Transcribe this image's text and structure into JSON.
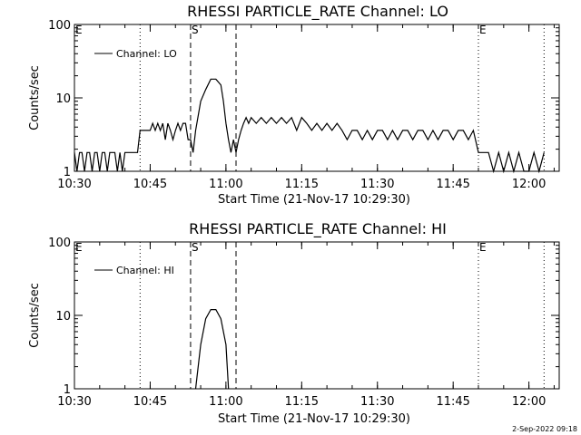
{
  "footer": {
    "timestamp": "2-Sep-2022 09:18"
  },
  "chart_data": [
    {
      "type": "line",
      "title": "RHESSI PARTICLE_RATE Channel: LO",
      "xlabel": "Start Time (21-Nov-17 10:29:30)",
      "ylabel": "Counts/sec",
      "y_scale": "log",
      "ylim": [
        1,
        100
      ],
      "xlim": [
        "10:30",
        "12:06"
      ],
      "x_ticks": [
        "10:30",
        "10:45",
        "11:00",
        "11:15",
        "11:30",
        "11:45",
        "12:00"
      ],
      "y_ticks": [
        "1",
        "10",
        "100"
      ],
      "legend": {
        "position": "top-left",
        "entries": [
          "Channel: LO"
        ]
      },
      "markers": [
        {
          "label": "E",
          "time": "10:30",
          "style": "none"
        },
        {
          "label": "",
          "time": "10:43",
          "style": "dotted"
        },
        {
          "label": "S",
          "time": "10:53",
          "style": "dashed"
        },
        {
          "label": "",
          "time": "11:02",
          "style": "dashed"
        },
        {
          "label": "E",
          "time": "11:50",
          "style": "dotted"
        },
        {
          "label": "",
          "time": "12:03",
          "style": "dotted"
        }
      ],
      "series": [
        {
          "name": "Channel: LO",
          "x": [
            "10:30",
            "10:30.5",
            "10:31",
            "10:31.5",
            "10:32",
            "10:32.5",
            "10:33",
            "10:33.5",
            "10:34",
            "10:34.5",
            "10:35",
            "10:35.5",
            "10:36",
            "10:36.5",
            "10:37",
            "10:37.5",
            "10:38",
            "10:38.5",
            "10:39",
            "10:39.5",
            "10:40",
            "10:40.5",
            "10:41",
            "10:41.5",
            "10:42",
            "10:42.5",
            "10:43",
            "10:43.5",
            "10:44",
            "10:44.5",
            "10:45",
            "10:45.5",
            "10:46",
            "10:46.5",
            "10:47",
            "10:47.5",
            "10:48",
            "10:48.5",
            "10:49",
            "10:49.5",
            "10:50",
            "10:50.5",
            "10:51",
            "10:51.5",
            "10:52",
            "10:52.5",
            "10:53",
            "10:53.5",
            "10:54",
            "10:55",
            "10:56",
            "10:57",
            "10:58",
            "10:59",
            "10:59.5",
            "11:00",
            "11:00.5",
            "11:01",
            "11:01.5",
            "11:02",
            "11:02.5",
            "11:03",
            "11:03.5",
            "11:04",
            "11:04.5",
            "11:05",
            "11:06",
            "11:07",
            "11:08",
            "11:09",
            "11:10",
            "11:11",
            "11:12",
            "11:13",
            "11:14",
            "11:15",
            "11:16",
            "11:17",
            "11:18",
            "11:19",
            "11:20",
            "11:21",
            "11:22",
            "11:23",
            "11:24",
            "11:25",
            "11:26",
            "11:27",
            "11:28",
            "11:29",
            "11:30",
            "11:31",
            "11:32",
            "11:33",
            "11:34",
            "11:35",
            "11:36",
            "11:37",
            "11:38",
            "11:39",
            "11:40",
            "11:41",
            "11:42",
            "11:43",
            "11:44",
            "11:45",
            "11:46",
            "11:47",
            "11:48",
            "11:49",
            "11:50",
            "11:51",
            "11:52",
            "11:53",
            "11:54",
            "11:55",
            "11:56",
            "11:57",
            "11:58",
            "11:59",
            "12:00",
            "12:01",
            "12:02",
            "12:03"
          ],
          "y": [
            1.8,
            1,
            1.8,
            1.8,
            1,
            1.8,
            1.8,
            1,
            1.8,
            1.8,
            1,
            1.8,
            1.8,
            1,
            1.8,
            1.8,
            1.8,
            1,
            1.8,
            1,
            1.8,
            1.8,
            1.8,
            1.8,
            1.8,
            1.8,
            3.6,
            3.6,
            3.6,
            3.6,
            3.6,
            4.5,
            3.6,
            4.5,
            3.6,
            4.5,
            2.7,
            4.5,
            3.6,
            2.7,
            3.6,
            4.5,
            3.6,
            4.5,
            4.5,
            2.7,
            2.7,
            1.8,
            3.6,
            9,
            13,
            18,
            18,
            15,
            9,
            4.5,
            2.7,
            1.8,
            2.7,
            1.8,
            2.7,
            3.6,
            4.5,
            5.4,
            4.5,
            5.4,
            4.5,
            5.4,
            4.5,
            5.4,
            4.5,
            5.4,
            4.5,
            5.4,
            3.6,
            5.4,
            4.5,
            3.6,
            4.5,
            3.6,
            4.5,
            3.6,
            4.5,
            3.6,
            2.7,
            3.6,
            3.6,
            2.7,
            3.6,
            2.7,
            3.6,
            3.6,
            2.7,
            3.6,
            2.7,
            3.6,
            3.6,
            2.7,
            3.6,
            3.6,
            2.7,
            3.6,
            2.7,
            3.6,
            3.6,
            2.7,
            3.6,
            3.6,
            2.7,
            3.6,
            1.8,
            1.8,
            1.8,
            1,
            1.8,
            1,
            1.8,
            1,
            1.8,
            1,
            1,
            1.8,
            1,
            1.8
          ]
        }
      ]
    },
    {
      "type": "line",
      "title": "RHESSI PARTICLE_RATE Channel: HI",
      "xlabel": "Start Time (21-Nov-17 10:29:30)",
      "ylabel": "Counts/sec",
      "y_scale": "log",
      "ylim": [
        1,
        100
      ],
      "xlim": [
        "10:30",
        "12:06"
      ],
      "x_ticks": [
        "10:30",
        "10:45",
        "11:00",
        "11:15",
        "11:30",
        "11:45",
        "12:00"
      ],
      "y_ticks": [
        "1",
        "10",
        "100"
      ],
      "legend": {
        "position": "top-left",
        "entries": [
          "Channel: HI"
        ]
      },
      "markers": [
        {
          "label": "E",
          "time": "10:30",
          "style": "none"
        },
        {
          "label": "",
          "time": "10:43",
          "style": "dotted"
        },
        {
          "label": "S",
          "time": "10:53",
          "style": "dashed"
        },
        {
          "label": "",
          "time": "11:02",
          "style": "dashed"
        },
        {
          "label": "E",
          "time": "11:50",
          "style": "dotted"
        },
        {
          "label": "",
          "time": "12:03",
          "style": "dotted"
        }
      ],
      "series": [
        {
          "name": "Channel: HI",
          "x": [
            "10:54",
            "10:55",
            "10:56",
            "10:57",
            "10:58",
            "10:59",
            "11:00",
            "11:00.5"
          ],
          "y": [
            1,
            4,
            9,
            12,
            12,
            9,
            4,
            1
          ]
        }
      ]
    }
  ]
}
